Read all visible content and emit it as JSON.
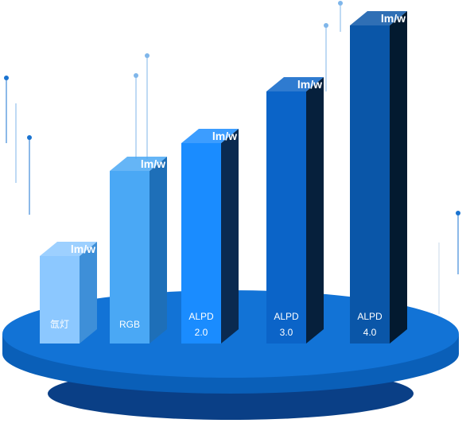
{
  "chart_data": {
    "type": "bar3d",
    "categories": [
      "氙灯",
      "RGB",
      "ALPD 2.0",
      "ALPD 3.0",
      "ALPD 4.0"
    ],
    "values": [
      110,
      217,
      252,
      317,
      400
    ],
    "unit": "lm/w",
    "ylim": [
      0,
      420
    ],
    "colors": [
      "#8cc8ff",
      "#4aa8f5",
      "#1a8cff",
      "#0b64c8",
      "#0a56a8"
    ],
    "side_colors": [
      "#3e8fd8",
      "#1e6fb8",
      "#0a2a50",
      "#06203c",
      "#031a30"
    ]
  }
}
